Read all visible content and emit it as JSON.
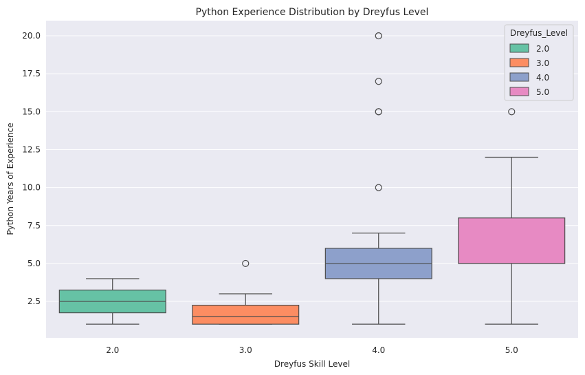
{
  "chart_data": {
    "type": "box",
    "title": "Python Experience Distribution by Dreyfus Level",
    "xlabel": "Dreyfus Skill Level",
    "ylabel": "Python Years of Experience",
    "ylim": [
      0.1,
      21.0
    ],
    "yticks": [
      2.5,
      5.0,
      7.5,
      10.0,
      12.5,
      15.0,
      17.5,
      20.0
    ],
    "ytick_labels": [
      "2.5",
      "5.0",
      "7.5",
      "10.0",
      "12.5",
      "15.0",
      "17.5",
      "20.0"
    ],
    "categories": [
      "2.0",
      "3.0",
      "4.0",
      "5.0"
    ],
    "grid": true,
    "legend": {
      "title": "Dreyfus_Level",
      "placement": "top-right",
      "entries": [
        "2.0",
        "3.0",
        "4.0",
        "5.0"
      ]
    },
    "series": [
      {
        "name": "2.0",
        "color": "#66c2a5",
        "whisker_low": 1.0,
        "q1": 1.75,
        "median": 2.5,
        "q3": 3.25,
        "whisker_high": 4.0,
        "outliers": []
      },
      {
        "name": "3.0",
        "color": "#fc8d62",
        "whisker_low": 1.0,
        "q1": 1.0,
        "median": 1.5,
        "q3": 2.25,
        "whisker_high": 3.0,
        "outliers": [
          5.0
        ]
      },
      {
        "name": "4.0",
        "color": "#8da0cb",
        "whisker_low": 1.0,
        "q1": 4.0,
        "median": 5.0,
        "q3": 6.0,
        "whisker_high": 7.0,
        "outliers": [
          10.0,
          15.0,
          15.0,
          17.0,
          20.0,
          20.0
        ]
      },
      {
        "name": "5.0",
        "color": "#e78ac3",
        "whisker_low": 1.0,
        "q1": 5.0,
        "median": 5.0,
        "q3": 8.0,
        "whisker_high": 12.0,
        "outliers": [
          15.0
        ]
      }
    ],
    "colors": {
      "plot_background": "#eaeaf2",
      "grid": "#ffffff",
      "line": "#4d4d4d"
    }
  }
}
